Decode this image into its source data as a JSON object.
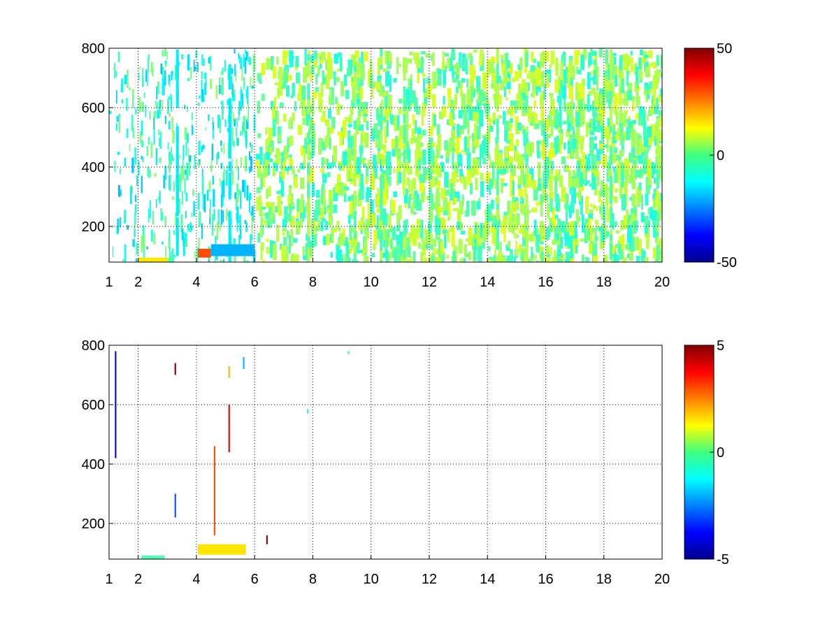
{
  "chart_data": [
    {
      "type": "heatmap",
      "title": "",
      "xlabel": "",
      "ylabel": "",
      "xlim": [
        1,
        20
      ],
      "ylim": [
        80,
        800
      ],
      "x_ticks": [
        1,
        2,
        4,
        6,
        8,
        10,
        12,
        14,
        16,
        18,
        20
      ],
      "y_ticks": [
        200,
        400,
        600,
        800
      ],
      "grid": true,
      "colormap": "jet",
      "colorbar": {
        "min": -50,
        "max": 50,
        "ticks": [
          -50,
          0,
          50
        ]
      },
      "description_of_values": "Sparse scattered cells, mostly near 0 (green/cyan/yellow); negative (cyan) streaks dominant for x<6; strong positive (red/orange) patch near x=4.1-4.5, y≈100-120.",
      "features": [
        {
          "x": [
            1.0,
            6.0
          ],
          "y": [
            80,
            800
          ],
          "value": -15,
          "density": "high"
        },
        {
          "x": [
            6.0,
            20.0
          ],
          "y": [
            80,
            800
          ],
          "value": 5,
          "density": "medium"
        },
        {
          "x": [
            4.05,
            4.5
          ],
          "y": [
            95,
            125
          ],
          "value": 30
        },
        {
          "x": [
            4.5,
            6.0
          ],
          "y": [
            100,
            140
          ],
          "value": -20
        },
        {
          "x": [
            2.0,
            3.0
          ],
          "y": [
            80,
            95
          ],
          "value": 15
        }
      ]
    },
    {
      "type": "heatmap",
      "title": "",
      "xlabel": "",
      "ylabel": "",
      "xlim": [
        1,
        20
      ],
      "ylim": [
        80,
        800
      ],
      "x_ticks": [
        1,
        2,
        4,
        6,
        8,
        10,
        12,
        14,
        16,
        18,
        20
      ],
      "y_ticks": [
        200,
        400,
        600,
        800
      ],
      "grid": true,
      "colormap": "jet",
      "colorbar": {
        "min": -5,
        "max": 5,
        "ticks": [
          -5,
          0,
          5
        ]
      },
      "features": [
        {
          "x": [
            1.2,
            1.25
          ],
          "y": [
            420,
            780
          ],
          "value": -4
        },
        {
          "x": [
            3.25,
            3.3
          ],
          "y": [
            700,
            740
          ],
          "value": 5
        },
        {
          "x": [
            3.25,
            3.3
          ],
          "y": [
            220,
            300
          ],
          "value": -3
        },
        {
          "x": [
            4.6,
            4.65
          ],
          "y": [
            160,
            460
          ],
          "value": 3
        },
        {
          "x": [
            5.1,
            5.15
          ],
          "y": [
            440,
            600
          ],
          "value": 4
        },
        {
          "x": [
            5.1,
            5.15
          ],
          "y": [
            690,
            730
          ],
          "value": 2
        },
        {
          "x": [
            5.6,
            5.65
          ],
          "y": [
            720,
            760
          ],
          "value": -2
        },
        {
          "x": [
            4.05,
            5.7
          ],
          "y": [
            95,
            130
          ],
          "value": 1.5
        },
        {
          "x": [
            2.1,
            2.9
          ],
          "y": [
            80,
            92
          ],
          "value": -0.5
        },
        {
          "x": [
            6.4,
            6.45
          ],
          "y": [
            130,
            160
          ],
          "value": 5
        },
        {
          "x": [
            7.8,
            7.85
          ],
          "y": [
            570,
            585
          ],
          "value": -1
        },
        {
          "x": [
            9.2,
            9.25
          ],
          "y": [
            770,
            780
          ],
          "value": -1
        }
      ]
    }
  ]
}
